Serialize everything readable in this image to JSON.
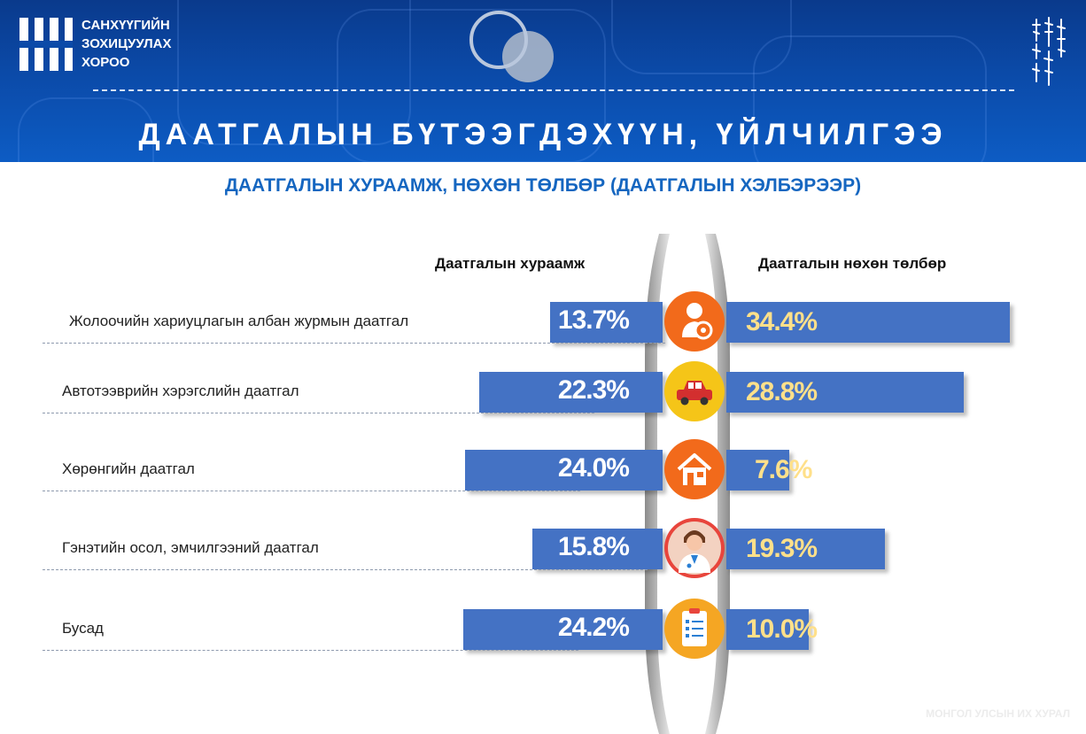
{
  "org": {
    "name_lines": [
      "САНХҮҮГИЙН",
      "ЗОХИЦУУЛАХ",
      "ХОРОО"
    ]
  },
  "page_title": "ДААТГАЛЫН БҮТЭЭГДЭХҮҮН, ҮЙЛЧИЛГЭЭ",
  "watermark": "МОНГОЛ УЛСЫН ИХ ХУРАЛ",
  "colors": {
    "bar": "#4472c4",
    "left_value_text": "#ffffff",
    "right_value_text": "#ffe08a",
    "title_blue": "#1566c0"
  },
  "chart_data": {
    "type": "bar",
    "title": "ДААТГАЛЫН ХУРААМЖ, НӨХӨН ТӨЛБӨР (ДААТГАЛЫН ХЭЛБЭРЭЭР)",
    "categories": [
      "Жолоочийн хариуцлагын албан журмын даатгал",
      "Автотээврийн хэрэгслийн даатгал",
      "Хөрөнгийн даатгал",
      "Гэнэтийн осол, эмчилгээний даатгал",
      "Бусад"
    ],
    "category_icons": [
      "driver-icon",
      "car-icon",
      "house-icon",
      "doctor-icon",
      "clipboard-icon"
    ],
    "icon_colors": [
      "#f26a1b",
      "#f5c518",
      "#f26a1b",
      "#e8453c",
      "#f5a623"
    ],
    "series": [
      {
        "name": "Даатгалын хураамж",
        "values": [
          13.7,
          22.3,
          24.0,
          15.8,
          24.2
        ],
        "labels": [
          "13.7%",
          "22.3%",
          "24.0%",
          "15.8%",
          "24.2%"
        ]
      },
      {
        "name": "Даатгалын нөхөн төлбөр",
        "values": [
          34.4,
          28.8,
          7.6,
          19.3,
          10.0
        ],
        "labels": [
          "34.4%",
          "28.8%",
          "7.6%",
          "19.3%",
          "10.0%"
        ]
      }
    ],
    "legend": "column-headers-top"
  }
}
